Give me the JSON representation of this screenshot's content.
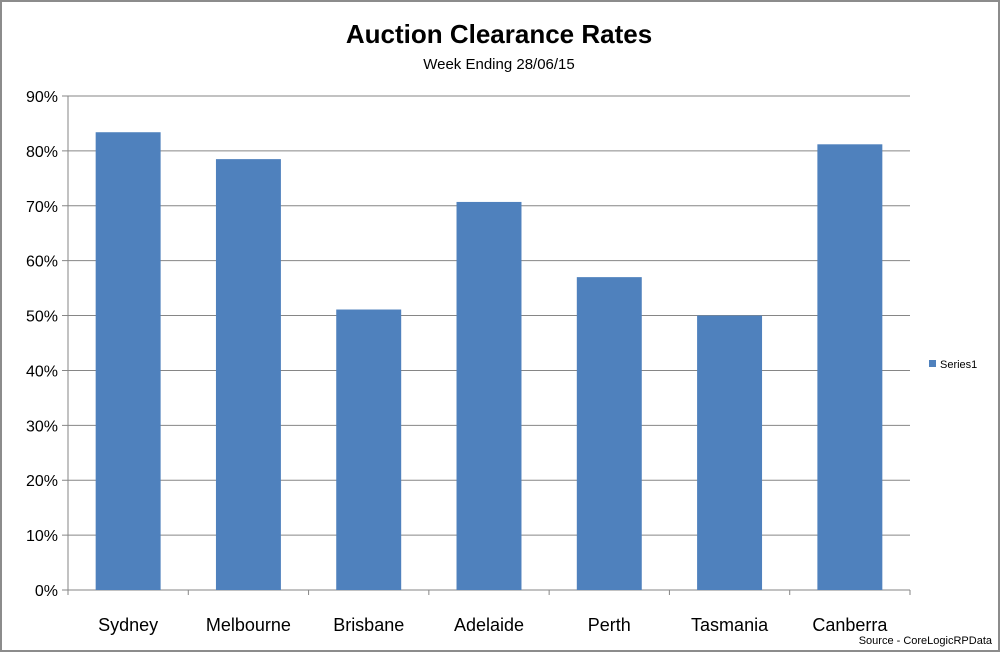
{
  "chart_data": {
    "type": "bar",
    "title": "Auction Clearance Rates",
    "subtitle": "Week Ending 28/06/15",
    "categories": [
      "Sydney",
      "Melbourne",
      "Brisbane",
      "Adelaide",
      "Perth",
      "Tasmania",
      "Canberra"
    ],
    "series": [
      {
        "name": "Series1",
        "values": [
          83.4,
          78.5,
          51.1,
          70.7,
          57.0,
          50.0,
          81.2
        ]
      }
    ],
    "ylim": [
      0,
      90
    ],
    "yticks": [
      "0%",
      "10%",
      "20%",
      "30%",
      "40%",
      "50%",
      "60%",
      "70%",
      "80%",
      "90%"
    ],
    "grid": true,
    "legend_position": "right",
    "source": "Source - CoreLogicRPData",
    "bar_color": "#4f81bd",
    "grid_color": "#868686"
  }
}
